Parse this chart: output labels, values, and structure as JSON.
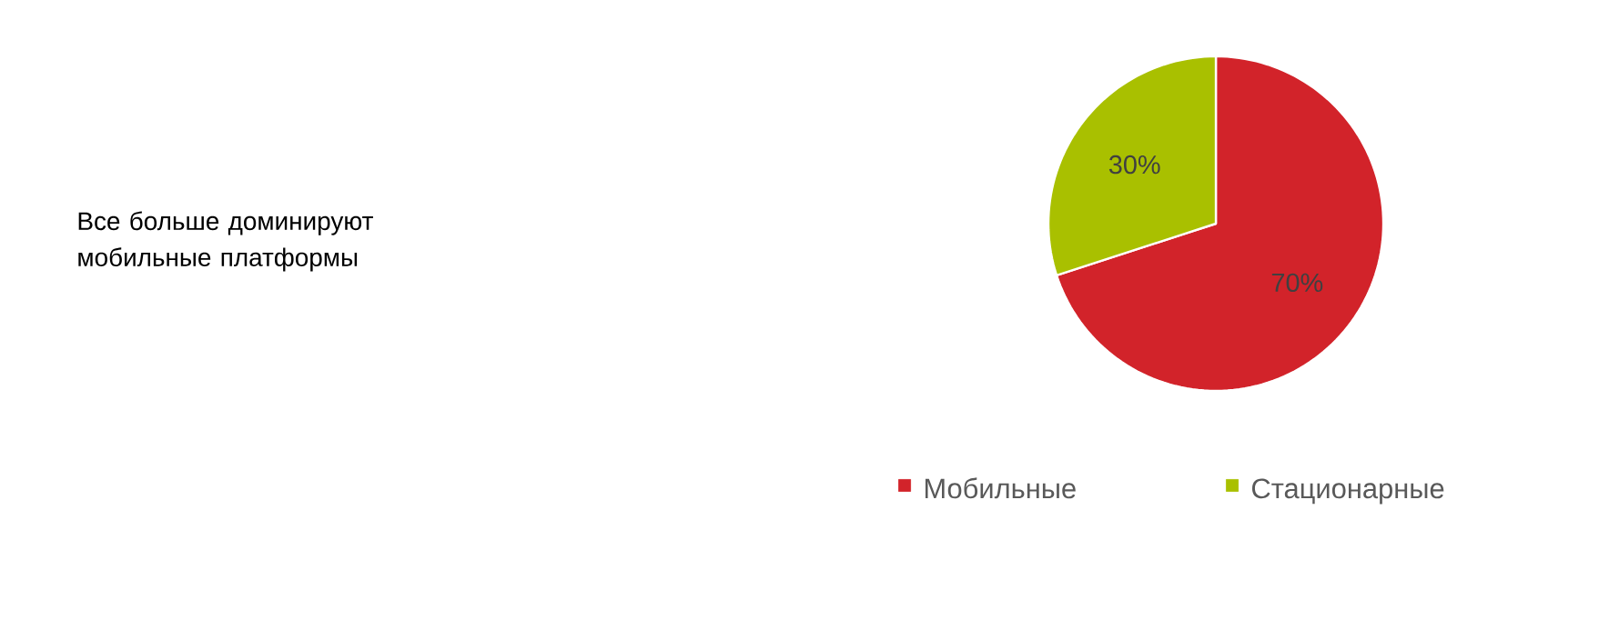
{
  "chart_data": {
    "type": "pie",
    "title": "Все больше доминируют мобильные платформы",
    "categories": [
      "Мобильные",
      "Стационарные"
    ],
    "values": [
      70,
      30
    ],
    "colors": [
      "#d2232a",
      "#a9c000"
    ],
    "value_labels": [
      "70%",
      "30%"
    ],
    "legend": "bottom"
  }
}
